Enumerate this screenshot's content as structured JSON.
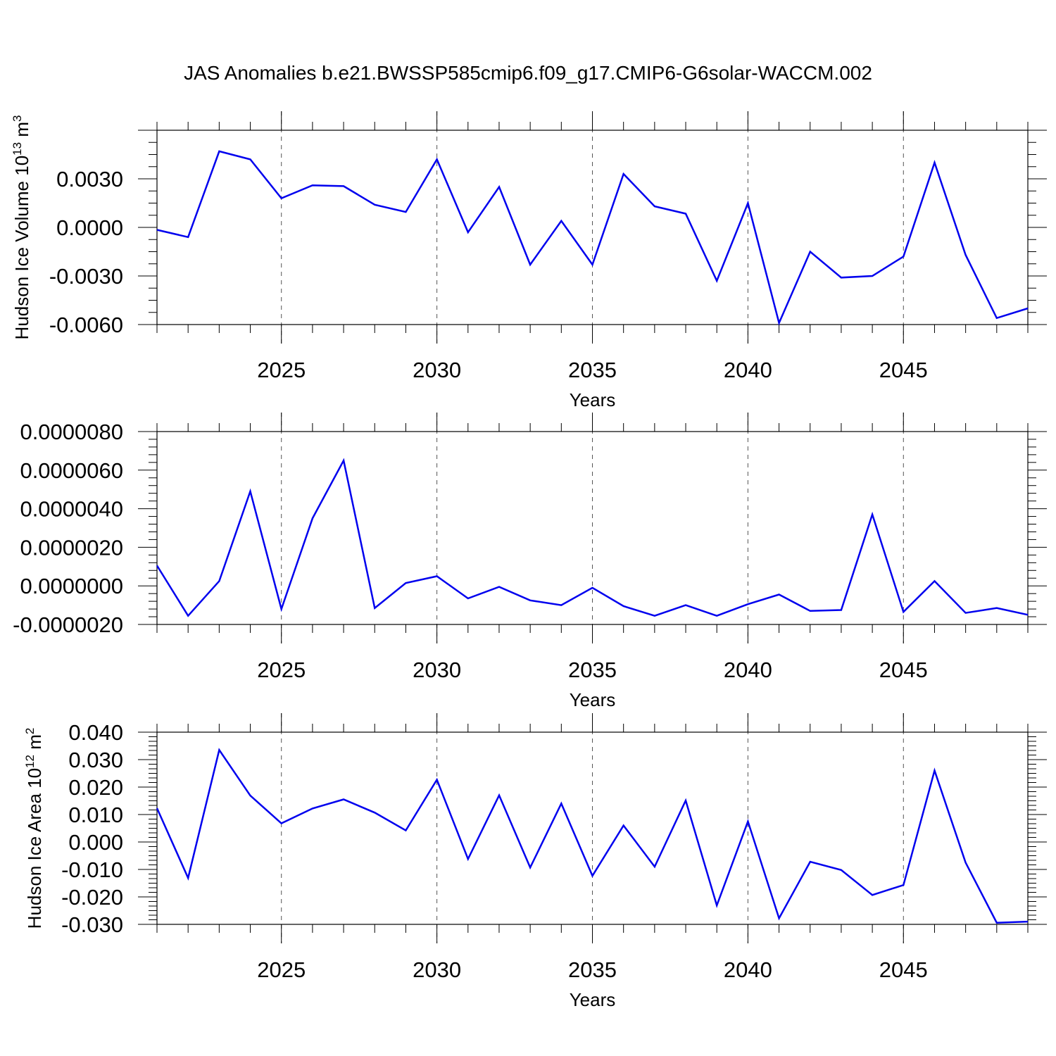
{
  "title": "JAS Anomalies b.e21.BWSSP585cmip6.f09_g17.CMIP6-G6solar-WACCM.002",
  "line_color": "#0000ee",
  "chart_data": [
    {
      "type": "line",
      "ylabel_main": "Hudson Ice Volume 10",
      "ylabel_exp": "13",
      "ylabel_unit": " m",
      "ylabel_unit_exp": "3",
      "xlabel": "Years",
      "xlim": [
        2021,
        2049
      ],
      "ylim": [
        -0.006,
        0.006
      ],
      "xticks": [
        2025,
        2030,
        2035,
        2040,
        2045
      ],
      "xtick_labels": [
        "2025",
        "2030",
        "2035",
        "2040",
        "2045"
      ],
      "yticks": [
        0.003,
        0.0,
        -0.003,
        -0.006
      ],
      "ytick_labels": [
        "0.0030",
        "0.0000",
        "-0.0030",
        "-0.0060"
      ],
      "x": [
        2021,
        2022,
        2023,
        2024,
        2025,
        2026,
        2027,
        2028,
        2029,
        2030,
        2031,
        2032,
        2033,
        2034,
        2035,
        2036,
        2037,
        2038,
        2039,
        2040,
        2041,
        2042,
        2043,
        2044,
        2045,
        2046,
        2047,
        2048,
        2049
      ],
      "values": [
        -0.00015,
        -0.0006,
        0.0047,
        0.0042,
        0.0018,
        0.0026,
        0.00255,
        0.0014,
        0.00095,
        0.0042,
        -0.0003,
        0.0025,
        -0.0023,
        0.0004,
        -0.0023,
        0.0033,
        0.0013,
        0.00085,
        -0.0033,
        0.0015,
        -0.0059,
        -0.0015,
        -0.0031,
        -0.003,
        -0.0018,
        0.004,
        -0.0017,
        -0.0056,
        -0.005
      ]
    },
    {
      "type": "line",
      "xlabel": "Years",
      "xlim": [
        2021,
        2049
      ],
      "ylim": [
        -2e-06,
        8e-06
      ],
      "xticks": [
        2025,
        2030,
        2035,
        2040,
        2045
      ],
      "xtick_labels": [
        "2025",
        "2030",
        "2035",
        "2040",
        "2045"
      ],
      "yticks": [
        8e-06,
        6e-06,
        4e-06,
        2e-06,
        0.0,
        -2e-06
      ],
      "ytick_labels": [
        "0.0000080",
        "0.0000060",
        "0.0000040",
        "0.0000020",
        "0.0000000",
        "-0.0000020"
      ],
      "x": [
        2021,
        2022,
        2023,
        2024,
        2025,
        2026,
        2027,
        2028,
        2029,
        2030,
        2031,
        2032,
        2033,
        2034,
        2035,
        2036,
        2037,
        2038,
        2039,
        2040,
        2041,
        2042,
        2043,
        2044,
        2045,
        2046,
        2047,
        2048,
        2049
      ],
      "values": [
        1.05e-06,
        -1.55e-06,
        2.5e-07,
        4.9e-06,
        -1.2e-06,
        3.5e-06,
        6.5e-06,
        -1.15e-06,
        1.5e-07,
        5e-07,
        -6.5e-07,
        -5e-08,
        -7.5e-07,
        -1e-06,
        -1e-07,
        -1.05e-06,
        -1.55e-06,
        -1e-06,
        -1.55e-06,
        -9.5e-07,
        -4.5e-07,
        -1.3e-06,
        -1.25e-06,
        3.7e-06,
        -1.35e-06,
        2.5e-07,
        -1.4e-06,
        -1.15e-06,
        -1.5e-06
      ]
    },
    {
      "type": "line",
      "ylabel_main": "Hudson Ice Area 10",
      "ylabel_exp": "12",
      "ylabel_unit": " m",
      "ylabel_unit_exp": "2",
      "xlabel": "Years",
      "xlim": [
        2021,
        2049
      ],
      "ylim": [
        -0.03,
        0.04
      ],
      "xticks": [
        2025,
        2030,
        2035,
        2040,
        2045
      ],
      "xtick_labels": [
        "2025",
        "2030",
        "2035",
        "2040",
        "2045"
      ],
      "yticks": [
        0.04,
        0.03,
        0.02,
        0.01,
        0.0,
        -0.01,
        -0.02,
        -0.03
      ],
      "ytick_labels": [
        "0.040",
        "0.030",
        "0.020",
        "0.010",
        "0.000",
        "-0.010",
        "-0.020",
        "-0.030"
      ],
      "x": [
        2021,
        2022,
        2023,
        2024,
        2025,
        2026,
        2027,
        2028,
        2029,
        2030,
        2031,
        2032,
        2033,
        2034,
        2035,
        2036,
        2037,
        2038,
        2039,
        2040,
        2041,
        2042,
        2043,
        2044,
        2045,
        2046,
        2047,
        2048,
        2049
      ],
      "values": [
        0.0123,
        -0.0131,
        0.0335,
        0.0169,
        0.0068,
        0.0122,
        0.0155,
        0.0107,
        0.0042,
        0.0227,
        -0.0062,
        0.017,
        -0.0093,
        0.014,
        -0.0123,
        0.006,
        -0.009,
        0.0151,
        -0.0231,
        0.0075,
        -0.0278,
        -0.0072,
        -0.0102,
        -0.0193,
        -0.0157,
        0.026,
        -0.0075,
        -0.0294,
        -0.029
      ]
    }
  ]
}
